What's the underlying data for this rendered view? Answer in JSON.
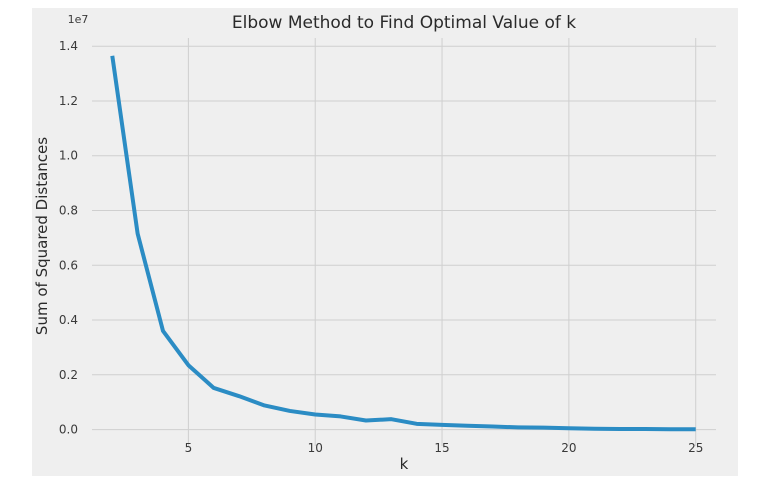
{
  "chart_data": {
    "type": "line",
    "title": "Elbow Method to Find Optimal Value of k",
    "xlabel": "k",
    "ylabel": "Sum of Squared Distances",
    "y_offset_label": "1e7",
    "xlim": [
      1.2,
      25.8
    ],
    "ylim": [
      -0.06,
      1.43
    ],
    "x_ticks": [
      5,
      10,
      15,
      20,
      25
    ],
    "y_ticks": [
      0.0,
      0.2,
      0.4,
      0.6,
      0.8,
      1.0,
      1.2,
      1.4
    ],
    "x_tick_labels": [
      "5",
      "10",
      "15",
      "20",
      "25"
    ],
    "y_tick_labels": [
      "0.0",
      "0.2",
      "0.4",
      "0.6",
      "0.8",
      "1.0",
      "1.2",
      "1.4"
    ],
    "grid": true,
    "style": "fivethirtyeight",
    "line_color": "#2b8cc4",
    "background_color": "#efefef",
    "series": [
      {
        "x": [
          2,
          3,
          4,
          5,
          6,
          7,
          8,
          9,
          10,
          11,
          12,
          13,
          14,
          15,
          16,
          17,
          18,
          19,
          20,
          21,
          22,
          23,
          24,
          25
        ],
        "values": [
          1.365,
          0.715,
          0.36,
          0.235,
          0.152,
          0.122,
          0.088,
          0.068,
          0.055,
          0.048,
          0.033,
          0.038,
          0.021,
          0.017,
          0.014,
          0.011,
          0.008,
          0.007,
          0.005,
          0.003,
          0.002,
          0.002,
          0.001,
          0.001
        ]
      }
    ]
  }
}
